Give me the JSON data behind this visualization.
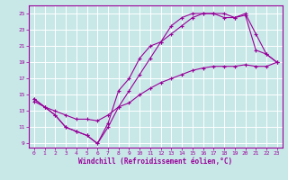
{
  "xlabel": "Windchill (Refroidissement éolien,°C)",
  "background_color": "#c8e8e8",
  "grid_color": "#aacccc",
  "line_color": "#990099",
  "xlim": [
    -0.5,
    23.5
  ],
  "ylim": [
    8.5,
    26.0
  ],
  "xticks": [
    0,
    1,
    2,
    3,
    4,
    5,
    6,
    7,
    8,
    9,
    10,
    11,
    12,
    13,
    14,
    15,
    16,
    17,
    18,
    19,
    20,
    21,
    22,
    23
  ],
  "yticks": [
    9,
    11,
    13,
    15,
    17,
    19,
    21,
    23,
    25
  ],
  "curve1_x": [
    0,
    1,
    2,
    3,
    4,
    5,
    6,
    7,
    8,
    9,
    10,
    11,
    12,
    13,
    14,
    15,
    16,
    17,
    18,
    19,
    20,
    21,
    22,
    23
  ],
  "curve1_y": [
    14.5,
    13.5,
    12.5,
    11.0,
    10.5,
    10.0,
    9.0,
    11.0,
    13.5,
    15.5,
    17.5,
    19.5,
    21.5,
    22.5,
    23.5,
    24.5,
    25.0,
    25.0,
    25.0,
    24.5,
    25.0,
    22.5,
    20.0,
    19.0
  ],
  "curve2_x": [
    0,
    1,
    2,
    3,
    4,
    5,
    6,
    7,
    8,
    9,
    10,
    11,
    12,
    13,
    14,
    15,
    16,
    17,
    18,
    19,
    20,
    21,
    22,
    23
  ],
  "curve2_y": [
    14.5,
    13.5,
    12.5,
    11.0,
    10.5,
    10.0,
    9.0,
    11.5,
    15.5,
    17.0,
    19.5,
    21.0,
    21.5,
    23.5,
    24.5,
    25.0,
    25.0,
    25.0,
    24.5,
    24.5,
    24.8,
    20.5,
    20.0,
    19.0
  ],
  "curve3_x": [
    0,
    1,
    2,
    3,
    4,
    5,
    6,
    7,
    8,
    9,
    10,
    11,
    12,
    13,
    14,
    15,
    16,
    17,
    18,
    19,
    20,
    21,
    22,
    23
  ],
  "curve3_y": [
    14.2,
    13.5,
    13.0,
    12.5,
    12.0,
    12.0,
    11.8,
    12.5,
    13.5,
    14.0,
    15.0,
    15.8,
    16.5,
    17.0,
    17.5,
    18.0,
    18.3,
    18.5,
    18.5,
    18.5,
    18.7,
    18.5,
    18.5,
    19.0
  ]
}
